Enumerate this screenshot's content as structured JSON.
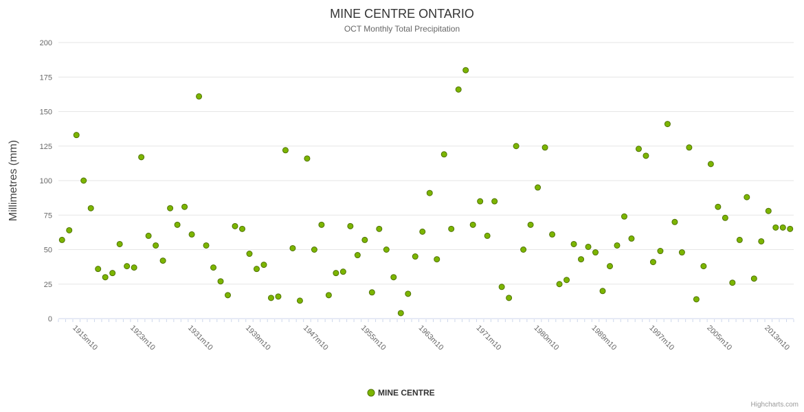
{
  "title": "MINE CENTRE ONTARIO",
  "subtitle": "OCT Monthly Total Precipitation",
  "y_axis_title": "Millimetres (mm)",
  "legend": {
    "label": "MINE CENTRE"
  },
  "credits": "Highcharts.com",
  "colors": {
    "point_fill": "#7cb500",
    "point_stroke": "#4e7200",
    "grid": "#e6e6e6",
    "axis_line": "#ccd6eb",
    "tick": "#ccd6eb",
    "label_text": "#666666",
    "title_text": "#333333"
  },
  "chart_data": {
    "type": "scatter",
    "series": [
      {
        "name": "MINE CENTRE"
      }
    ],
    "title": "MINE CENTRE ONTARIO",
    "subtitle": "OCT Monthly Total Precipitation",
    "ylabel": "Millimetres (mm)",
    "xlabel": "",
    "ylim": [
      0,
      200
    ],
    "y_tick_interval": 25,
    "grid": true,
    "legend_position": "bottom",
    "x_label_start_index": 2,
    "x_label_step": 8,
    "visible_tick_labels": [
      "1915m10",
      "1923m10",
      "1931m10",
      "1939m10",
      "1947m10",
      "1955m10",
      "1963m10",
      "1971m10",
      "1980m10",
      "1989m10",
      "1997m10",
      "2005m10",
      "2013m10"
    ],
    "x": [
      "1913m10",
      "1914m10",
      "1915m10",
      "1916m10",
      "1917m10",
      "1918m10",
      "1919m10",
      "1920m10",
      "1921m10",
      "1922m10",
      "1923m10",
      "1924m10",
      "1925m10",
      "1926m10",
      "1927m10",
      "1928m10",
      "1929m10",
      "1930m10",
      "1931m10",
      "1932m10",
      "1933m10",
      "1934m10",
      "1935m10",
      "1936m10",
      "1937m10",
      "1938m10",
      "1939m10",
      "1940m10",
      "1941m10",
      "1942m10",
      "1943m10",
      "1944m10",
      "1945m10",
      "1946m10",
      "1947m10",
      "1948m10",
      "1949m10",
      "1950m10",
      "1951m10",
      "1952m10",
      "1953m10",
      "1954m10",
      "1955m10",
      "1956m10",
      "1957m10",
      "1958m10",
      "1959m10",
      "1960m10",
      "1961m10",
      "1962m10",
      "1963m10",
      "1964m10",
      "1965m10",
      "1966m10",
      "1967m10",
      "1968m10",
      "1969m10",
      "1970m10",
      "1971m10",
      "1972m10",
      "1973m10",
      "1974m10",
      "1975m10",
      "1977m10",
      "1978m10",
      "1979m10",
      "1980m10",
      "1981m10",
      "1982m10",
      "1983m10",
      "1985m10",
      "1986m10",
      "1987m10",
      "1988m10",
      "1989m10",
      "1990m10",
      "1991m10",
      "1992m10",
      "1993m10",
      "1994m10",
      "1995m10",
      "1996m10",
      "1997m10",
      "1998m10",
      "1999m10",
      "2000m10",
      "2001m10",
      "2002m10",
      "2003m10",
      "2004m10",
      "2005m10",
      "2006m10",
      "2007m10",
      "2008m10",
      "2009m10",
      "2010m10",
      "2011m10",
      "2012m10",
      "2013m10",
      "2014m10",
      "2015m10",
      "2016m10"
    ],
    "values": [
      57,
      64,
      133,
      100,
      80,
      36,
      30,
      33,
      54,
      38,
      37,
      117,
      60,
      53,
      42,
      80,
      68,
      81,
      61,
      161,
      53,
      37,
      27,
      17,
      67,
      65,
      47,
      36,
      39,
      15,
      16,
      122,
      51,
      13,
      116,
      50,
      68,
      17,
      33,
      34,
      67,
      46,
      57,
      19,
      65,
      50,
      30,
      4,
      18,
      45,
      63,
      91,
      43,
      119,
      65,
      166,
      180,
      68,
      85,
      60,
      85,
      23,
      15,
      125,
      50,
      68,
      95,
      124,
      61,
      25,
      28,
      54,
      43,
      52,
      48,
      20,
      38,
      53,
      74,
      58,
      123,
      118,
      41,
      49,
      141,
      70,
      48,
      124,
      14,
      38,
      112,
      81,
      73,
      26,
      57,
      88,
      29,
      56,
      78,
      66,
      66,
      65
    ]
  }
}
